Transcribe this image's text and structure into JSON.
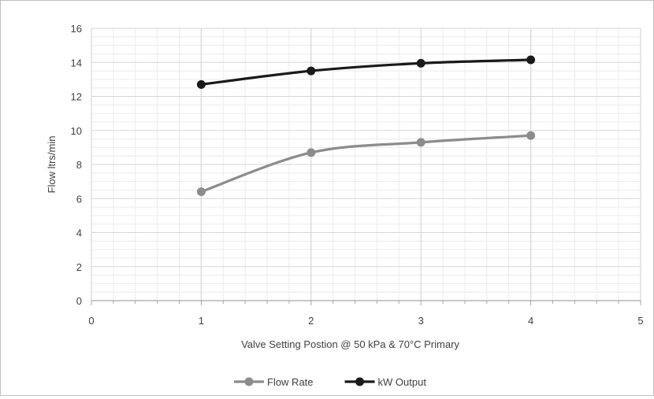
{
  "chart_data": {
    "type": "line",
    "title": "",
    "xlabel": "Valve Setting Postion @ 50 kPa & 70°C Primary",
    "ylabel": "Flow ltrs/min",
    "xlim": [
      0,
      5
    ],
    "ylim": [
      0,
      16
    ],
    "x_ticks": [
      0,
      1,
      2,
      3,
      4,
      5
    ],
    "y_ticks": [
      0,
      2,
      4,
      6,
      8,
      10,
      12,
      14,
      16
    ],
    "grid": true,
    "legend_position": "bottom",
    "series": [
      {
        "name": "Flow Rate",
        "color": "#8c8c8c",
        "x": [
          1,
          2,
          3,
          4
        ],
        "y": [
          6.4,
          8.7,
          9.3,
          9.7
        ]
      },
      {
        "name": "kW Output",
        "color": "#1a1a1a",
        "x": [
          1,
          2,
          3,
          4
        ],
        "y": [
          12.7,
          13.5,
          13.95,
          14.15
        ]
      }
    ]
  }
}
